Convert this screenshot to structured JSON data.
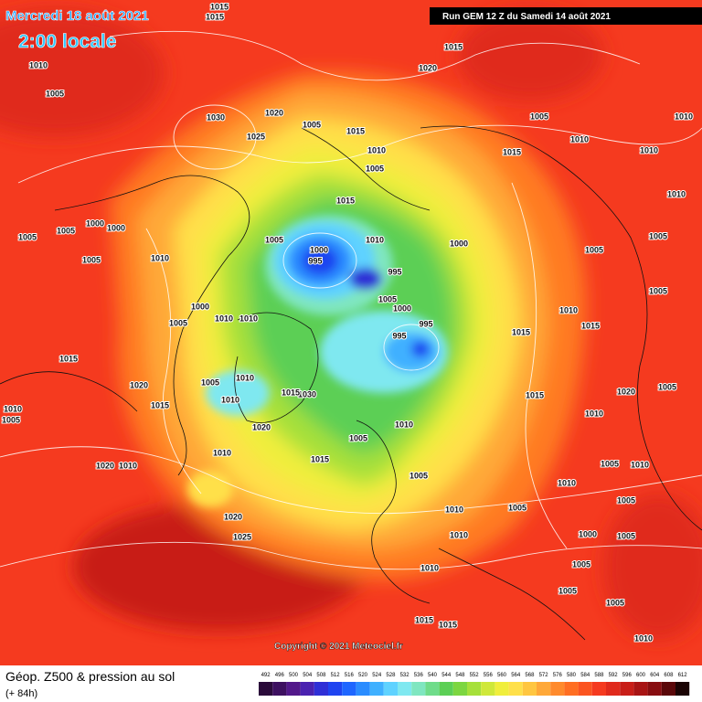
{
  "header": {
    "date": "Mercredi 18 août 2021",
    "time": "2:00 locale",
    "run": "Run GEM 12 Z du Samedi 14 août 2021",
    "copyright": "Copyright © 2021 Meteociel.fr"
  },
  "legend": {
    "title": "Géop. Z500 & pression au sol",
    "lead": "(+ 84h)",
    "scale": [
      492,
      496,
      500,
      504,
      508,
      512,
      516,
      520,
      524,
      528,
      532,
      536,
      540,
      544,
      548,
      552,
      556,
      560,
      564,
      568,
      572,
      576,
      580,
      584,
      588,
      592,
      596,
      600,
      604,
      608,
      612
    ],
    "colors": [
      "#2a0a3a",
      "#3d1060",
      "#52188a",
      "#4a22b0",
      "#2f2fd6",
      "#1f44f0",
      "#1e66ff",
      "#2a8cff",
      "#3fb0ff",
      "#5fd2ff",
      "#7fe8f0",
      "#7fe6c0",
      "#6fdc8a",
      "#5ccf55",
      "#7cd640",
      "#a6e03a",
      "#cfe83a",
      "#f0ee3c",
      "#ffe04a",
      "#ffc640",
      "#ffa838",
      "#ff8a2c",
      "#ff6e22",
      "#fb5420",
      "#f53a1f",
      "#e02a1c",
      "#c81e18",
      "#a81414",
      "#880d10",
      "#5a080a",
      "#1a0404"
    ]
  },
  "isobars": [
    "1015",
    "1015",
    "1010",
    "1005",
    "1015",
    "1020",
    "1030",
    "1020",
    "1025",
    "1005",
    "1015",
    "1010",
    "1005",
    "1005",
    "1010",
    "1015",
    "1010",
    "1010",
    "1010",
    "1015",
    "1005",
    "1010",
    "1000",
    "1000",
    "995",
    "995",
    "1005",
    "1005",
    "1005",
    "1000",
    "1000",
    "1005",
    "1005",
    "1010",
    "1005",
    "1000",
    "995",
    "995",
    "1000",
    "1005",
    "1010",
    "1010",
    "1010",
    "1015",
    "1015",
    "1005",
    "1015",
    "1020",
    "1015",
    "1010",
    "1005",
    "1010",
    "1030",
    "1015",
    "1020",
    "1005",
    "1010",
    "1010",
    "1005",
    "1005",
    "1010",
    "1020",
    "1010",
    "1015",
    "1005",
    "1020",
    "1010",
    "1005",
    "1010",
    "1015",
    "1010",
    "1005",
    "1005",
    "1020",
    "1025",
    "1010",
    "1000",
    "1005",
    "1010",
    "1005",
    "1010",
    "1005",
    "1005",
    "1015",
    "1015",
    "1010"
  ]
}
